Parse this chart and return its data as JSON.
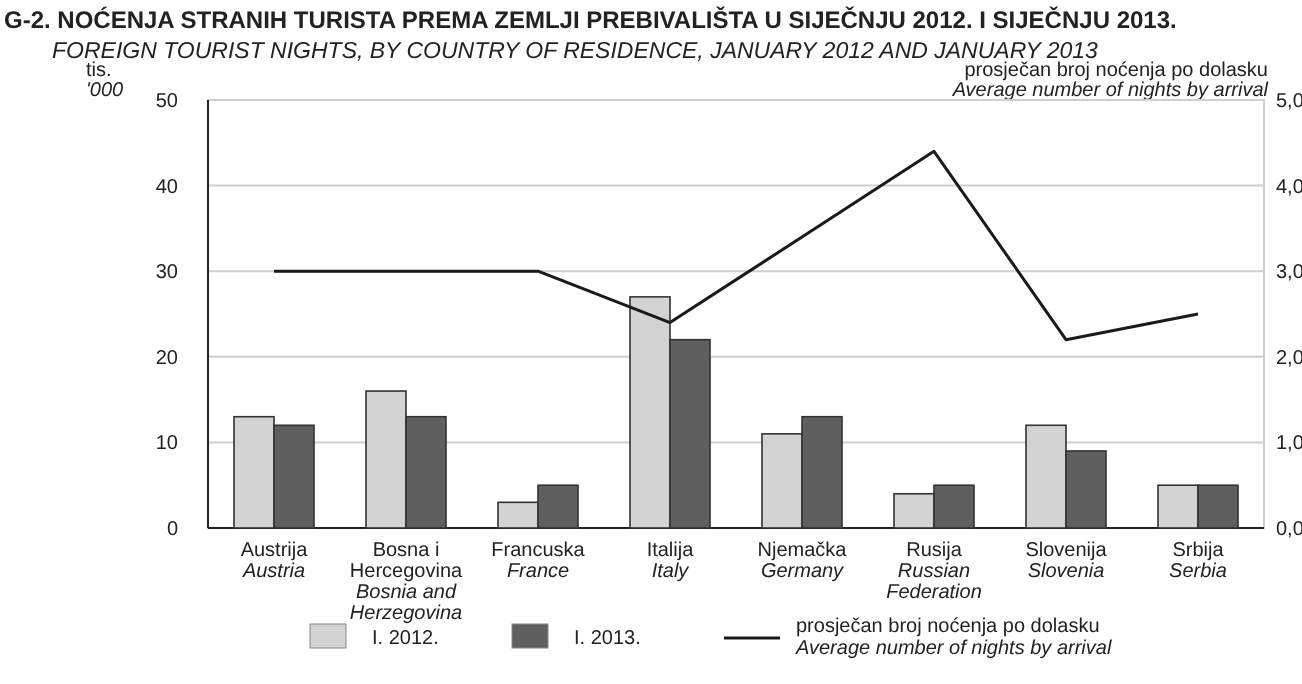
{
  "chart_data": {
    "type": "bar",
    "title": "G-2.  NOĆENJA STRANIH TURISTA PREMA ZEMLJI PREBIVALIŠTA U SIJEČNJU 2012. I SIJEČNJU 2013.",
    "subtitle": "FOREIGN TOURIST NIGHTS, BY COUNTRY OF RESIDENCE, JANUARY 2012 AND JANUARY 2013",
    "ylabel": "tis.\n'000",
    "y2label": "prosječan broj noćenja po dolasku\nAverage number of nights by arrival",
    "categories": [
      "Austrija\nAustria",
      "Bosna i Hercegovina\nBosnia and Herzegovina",
      "Francuska\nFrance",
      "Italija\nItaly",
      "Njemačka\nGermany",
      "Rusija\nRussian Federation",
      "Slovenija\nSlovenia",
      "Srbija\nSerbia"
    ],
    "series": [
      {
        "name": "I. 2012.",
        "color": "#d3d3d3",
        "values": [
          13,
          16,
          3,
          27,
          11,
          4,
          12,
          5
        ]
      },
      {
        "name": "I. 2013.",
        "color": "#5f5f5f",
        "values": [
          12,
          13,
          5,
          22,
          13,
          5,
          9,
          5
        ]
      },
      {
        "name": "prosječan broj noćenja po dolasku\nAverage number of nights by arrival",
        "type": "line",
        "axis": "y2",
        "color": "#1a1a1a",
        "values": [
          3.0,
          3.0,
          3.0,
          2.4,
          3.4,
          4.4,
          2.2,
          2.5
        ]
      }
    ],
    "ylim": [
      0,
      50
    ],
    "yticks": [
      0,
      10,
      20,
      30,
      40,
      50
    ],
    "y2lim": [
      0,
      5
    ],
    "y2ticks": [
      {
        "value": 0,
        "label": "0,0"
      },
      {
        "value": 1,
        "label": "1,0"
      },
      {
        "value": 2,
        "label": "2,0"
      },
      {
        "value": 3,
        "label": "3,0"
      },
      {
        "value": 4,
        "label": "4,0"
      },
      {
        "value": 5,
        "label": "5,0"
      }
    ],
    "grid": "y",
    "legend": "bottom"
  }
}
